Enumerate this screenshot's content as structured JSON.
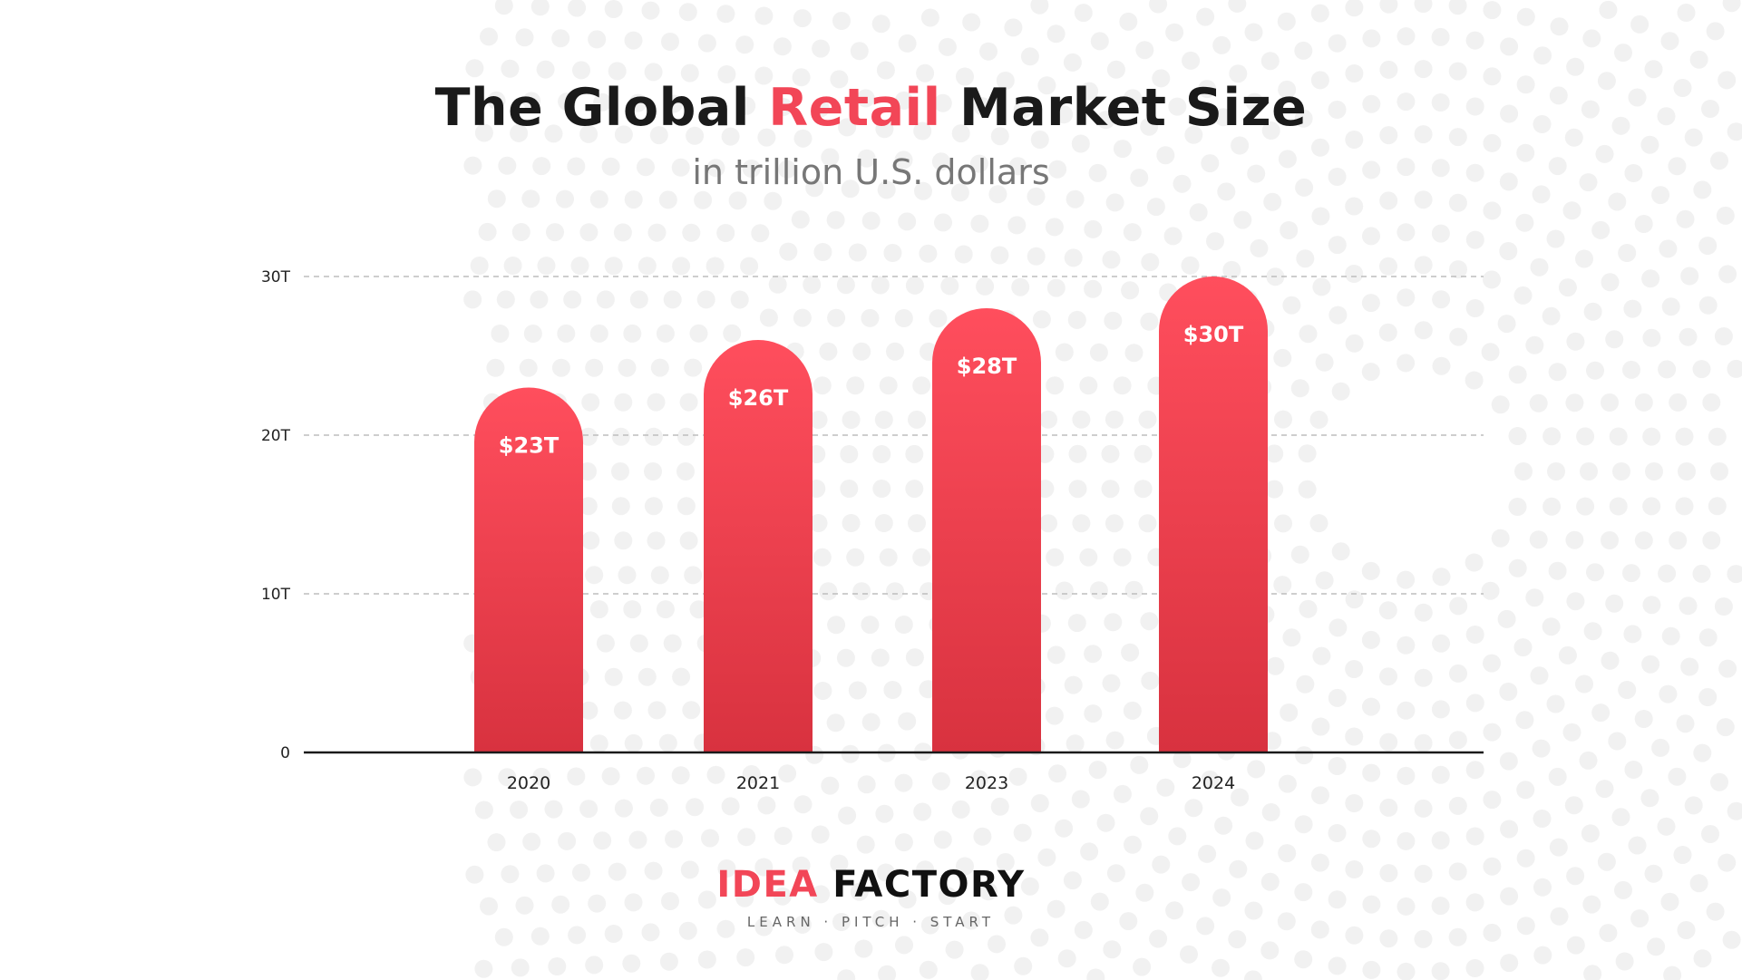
{
  "header": {
    "title_prefix": "The Global ",
    "title_accent": "Retail",
    "title_suffix": " Market Size",
    "subtitle": "in trillion U.S. dollars"
  },
  "colors": {
    "accent": "#f24657",
    "bar_top": "#ff4e5d",
    "bar_bottom": "#d8323f",
    "text_dark": "#1a1a1a",
    "subtitle_gray": "#777777",
    "grid": "#bdbdbd",
    "dot": "#f1f1f1"
  },
  "chart_data": {
    "type": "bar",
    "title": "The Global Retail Market Size",
    "subtitle": "in trillion U.S. dollars",
    "xlabel": "",
    "ylabel": "",
    "categories": [
      "2020",
      "2021",
      "2023",
      "2024"
    ],
    "values": [
      23,
      26,
      28,
      30
    ],
    "data_labels": [
      "$23T",
      "$26T",
      "$28T",
      "$30T"
    ],
    "ylim": [
      0,
      30
    ],
    "yticks": [
      0,
      10,
      20,
      30
    ],
    "ytick_labels": [
      "0",
      "10T",
      "20T",
      "30T"
    ],
    "grid": true,
    "legend": "none"
  },
  "logo": {
    "word1": "IDEA",
    "word2": "FACTORY",
    "tagline": "LEARN · PITCH · START"
  }
}
